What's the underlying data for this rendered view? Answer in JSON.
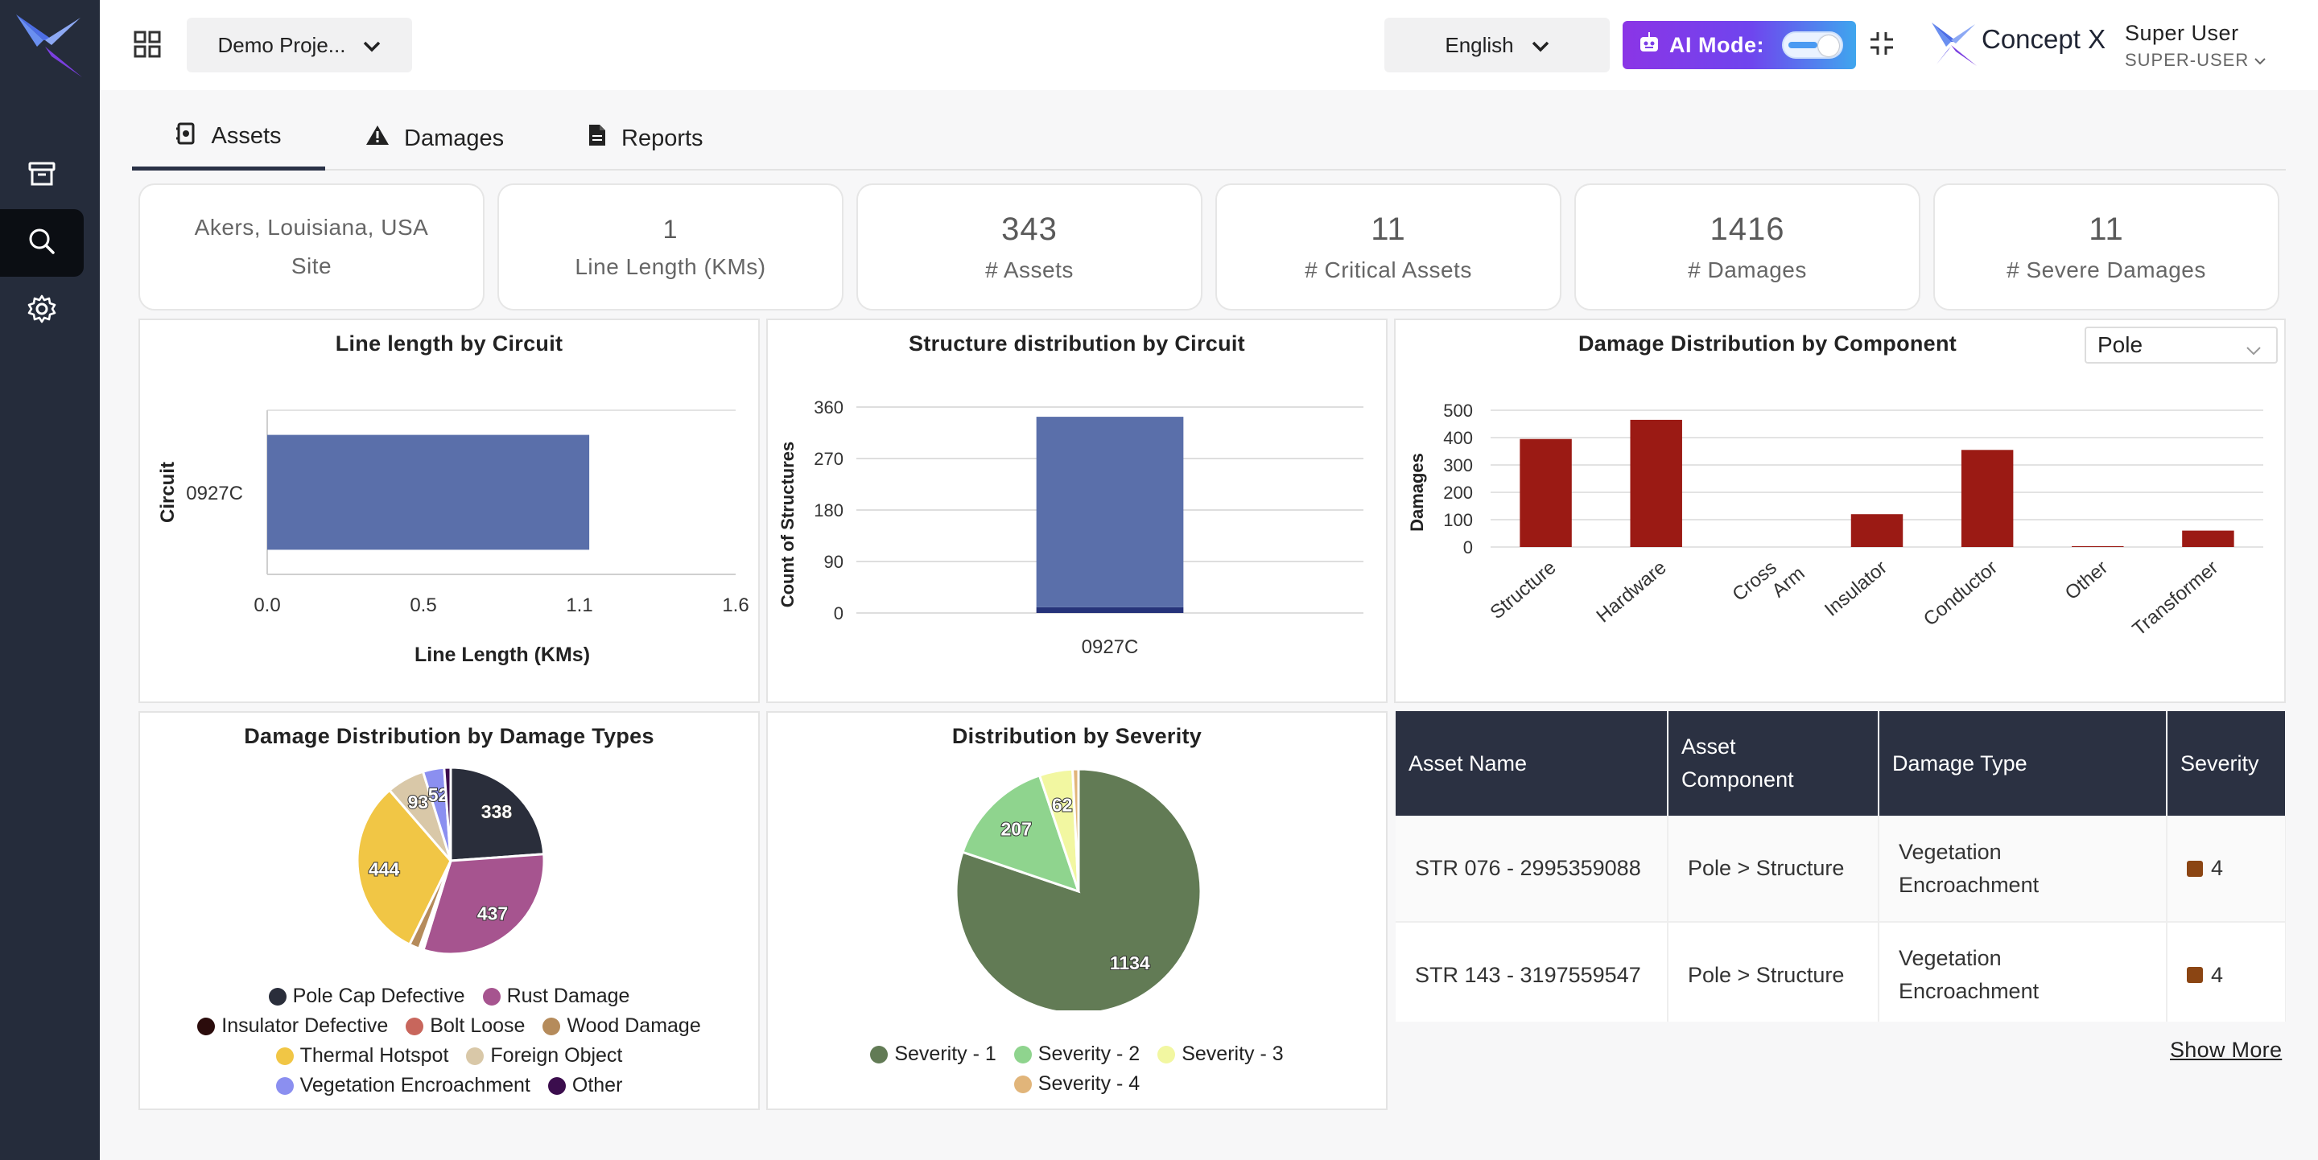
{
  "sidebar": {
    "items": [
      {
        "icon": "archive-icon"
      },
      {
        "icon": "search-icon"
      },
      {
        "icon": "gear-icon"
      }
    ]
  },
  "header": {
    "project_select": "Demo Proje...",
    "language_select": "English",
    "ai_mode_label": "AI Mode:",
    "ai_mode_enabled": true,
    "brand_name": "Concept X",
    "user_name": "Super User",
    "user_role": "SUPER-USER"
  },
  "tabs": [
    {
      "label": "Assets",
      "icon": "asset-icon",
      "active": true
    },
    {
      "label": "Damages",
      "icon": "warning-icon",
      "active": false
    },
    {
      "label": "Reports",
      "icon": "document-icon",
      "active": false
    }
  ],
  "stats": {
    "site_name": "Akers, Louisiana, USA",
    "site_label": "Site",
    "line_length_value": "1",
    "line_length_label": "Line Length (KMs)",
    "assets_value": "343",
    "assets_label": "# Assets",
    "critical_value": "11",
    "critical_label": "# Critical Assets",
    "damages_value": "1416",
    "damages_label": "# Damages",
    "severe_value": "11",
    "severe_label": "# Severe Damages"
  },
  "chart_data": [
    {
      "type": "bar",
      "orientation": "horizontal",
      "title": "Line length by Circuit",
      "categories": [
        "0927C"
      ],
      "values": [
        1.1
      ],
      "xlabel": "Line Length (KMs)",
      "ylabel": "Circuit",
      "xticks": [
        "0.0",
        "0.5",
        "1.1",
        "1.6"
      ],
      "xlim": [
        0,
        1.6
      ],
      "color": "#5a6faa"
    },
    {
      "type": "bar",
      "stacked": true,
      "title": "Structure distribution by Circuit",
      "categories": [
        "0927C"
      ],
      "series": [
        {
          "values": [
            10
          ],
          "color": "#26337a"
        },
        {
          "values": [
            333
          ],
          "color": "#5a6faa"
        }
      ],
      "ylabel": "Count of Structures",
      "yticks": [
        "0",
        "90",
        "180",
        "270",
        "360"
      ],
      "ylim": [
        0,
        360
      ]
    },
    {
      "type": "bar",
      "title": "Damage Distribution by Component",
      "categories": [
        "Structure",
        "Hardware",
        "Cross Arm",
        "Insulator",
        "Conductor",
        "Other",
        "Transformer"
      ],
      "values": [
        395,
        465,
        0,
        120,
        355,
        3,
        60
      ],
      "ylabel": "Damages",
      "yticks": [
        "0",
        "100",
        "200",
        "300",
        "400",
        "500"
      ],
      "ylim": [
        0,
        500
      ],
      "color": "#9b1a14",
      "filter_value": "Pole"
    },
    {
      "type": "pie",
      "title": "Damage Distribution by Damage Types",
      "slices": [
        {
          "name": "Pole Cap Defective",
          "value": 338,
          "color": "#2a2e3b",
          "label": "338"
        },
        {
          "name": "Rust Damage",
          "value": 437,
          "color": "#a6548f",
          "label": "437"
        },
        {
          "name": "Insulator Defective",
          "value": 6,
          "color": "#2b0c0c",
          "label": ""
        },
        {
          "name": "Bolt Loose",
          "value": 5,
          "color": "#c8665c",
          "label": ""
        },
        {
          "name": "Wood Damage",
          "value": 25,
          "color": "#b58b5b",
          "label": ""
        },
        {
          "name": "Thermal Hotspot",
          "value": 444,
          "color": "#f1c645",
          "label": "444"
        },
        {
          "name": "Foreign Object",
          "value": 93,
          "color": "#d9c8a8",
          "label": "93"
        },
        {
          "name": "Vegetation Encroachment",
          "value": 52,
          "color": "#8b8ff0",
          "label": "52"
        },
        {
          "name": "Other",
          "value": 16,
          "color": "#3b0d4d",
          "label": ""
        }
      ]
    },
    {
      "type": "pie",
      "title": "Distribution by Severity",
      "slices": [
        {
          "name": "Severity - 1",
          "value": 1134,
          "color": "#627b55",
          "label": "1134"
        },
        {
          "name": "Severity - 2",
          "value": 207,
          "color": "#8fd48e",
          "label": "207"
        },
        {
          "name": "Severity - 3",
          "value": 62,
          "color": "#f2f7a1",
          "label": "62"
        },
        {
          "name": "Severity - 4",
          "value": 11,
          "color": "#e1b57a",
          "label": ""
        }
      ]
    }
  ],
  "table": {
    "headers": [
      "Asset Name",
      "Asset Component",
      "Damage Type",
      "Severity"
    ],
    "rows": [
      {
        "asset_name": "STR 076 - 2995359088",
        "component": "Pole > Structure",
        "damage_type": "Vegetation Encroachment",
        "severity": "4"
      },
      {
        "asset_name": "STR 143 - 3197559547",
        "component": "Pole > Structure",
        "damage_type": "Vegetation Encroachment",
        "severity": "4"
      }
    ],
    "show_more_label": "Show More"
  }
}
